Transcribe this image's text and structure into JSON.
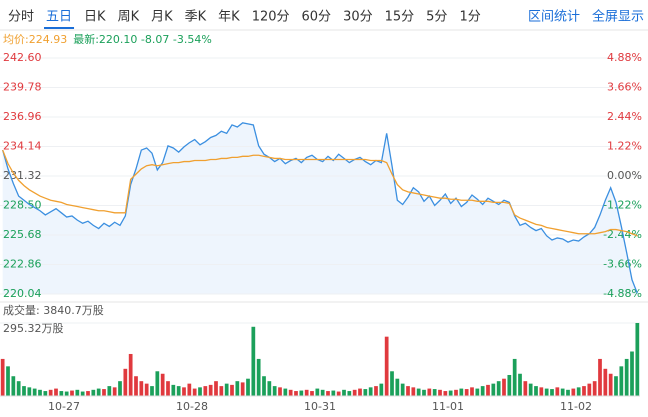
{
  "ui": {
    "tabs": [
      "分时",
      "五日",
      "日K",
      "周K",
      "月K",
      "季K",
      "年K",
      "120分",
      "60分",
      "30分",
      "15分",
      "5分",
      "1分"
    ],
    "active_tab": 1,
    "actions": [
      "区间统计",
      "全屏显示"
    ],
    "watermark": "雪球"
  },
  "chart_data": [
    {
      "type": "line",
      "avg_label": "均价:224.93",
      "latest_label": "最新:220.10 -8.07 -3.54%",
      "xlim": [
        -0.5,
        119.5
      ],
      "xticks": [
        {
          "value": 11.5,
          "label": "10-27"
        },
        {
          "value": 35.5,
          "label": "10-28"
        },
        {
          "value": 59.5,
          "label": "10-31"
        },
        {
          "value": 83.5,
          "label": "11-01"
        },
        {
          "value": 107.5,
          "label": "11-02"
        }
      ],
      "ylim": [
        220.04,
        242.6
      ],
      "yticks": [
        {
          "value": 242.6,
          "label": "242.60"
        },
        {
          "value": 239.78,
          "label": "239.78"
        },
        {
          "value": 236.96,
          "label": "236.96"
        },
        {
          "value": 234.14,
          "label": "234.14"
        },
        {
          "value": 231.32,
          "label": "231.32"
        },
        {
          "value": 228.5,
          "label": "228.50"
        },
        {
          "value": 225.68,
          "label": "225.68"
        },
        {
          "value": 222.86,
          "label": "222.86"
        },
        {
          "value": 220.04,
          "label": "220.04"
        }
      ],
      "y2lim": [
        -4.88,
        4.88
      ],
      "y2ticks": [
        {
          "value": 4.88,
          "label": "4.88%"
        },
        {
          "value": 3.66,
          "label": "3.66%"
        },
        {
          "value": 2.44,
          "label": "2.44%"
        },
        {
          "value": 1.22,
          "label": "1.22%"
        },
        {
          "value": 0,
          "label": "0.00%"
        },
        {
          "value": -1.22,
          "label": "-1.22%"
        },
        {
          "value": -2.44,
          "label": "-2.44%"
        },
        {
          "value": -3.66,
          "label": "-3.66%"
        },
        {
          "value": -4.88,
          "label": "-4.88%"
        }
      ],
      "grid": true,
      "series": [
        {
          "color": "#3b8fe0",
          "fill": "#eef5fd",
          "values": [
            233.8,
            232.0,
            230.6,
            229.4,
            229.0,
            228.6,
            228.3,
            228.0,
            227.6,
            227.9,
            228.2,
            227.8,
            227.4,
            227.5,
            227.1,
            226.8,
            227.0,
            226.6,
            226.3,
            226.8,
            226.5,
            226.9,
            226.6,
            227.5,
            230.5,
            232.0,
            233.8,
            234.0,
            233.5,
            231.9,
            232.6,
            234.2,
            234.0,
            233.6,
            234.1,
            234.5,
            234.8,
            234.3,
            234.6,
            235.0,
            235.2,
            235.6,
            235.4,
            236.2,
            236.0,
            236.4,
            236.3,
            236.2,
            234.2,
            233.4,
            233.1,
            232.7,
            233.0,
            232.5,
            232.8,
            233.0,
            232.6,
            233.1,
            233.3,
            232.9,
            232.7,
            233.2,
            232.8,
            233.4,
            233.0,
            232.6,
            232.9,
            233.1,
            232.7,
            232.4,
            232.8,
            232.6,
            235.4,
            232.3,
            229.0,
            228.6,
            229.3,
            230.2,
            229.8,
            228.9,
            229.4,
            228.5,
            229.0,
            229.6,
            228.7,
            229.2,
            228.4,
            228.8,
            229.5,
            229.1,
            228.6,
            229.2,
            228.9,
            228.6,
            229.0,
            228.8,
            227.5,
            226.6,
            226.8,
            226.4,
            226.1,
            226.3,
            225.6,
            225.2,
            225.4,
            225.3,
            225.0,
            225.2,
            225.1,
            225.5,
            225.8,
            226.4,
            227.6,
            229.0,
            230.2,
            228.8,
            226.5,
            224.0,
            221.4,
            220.1
          ]
        },
        {
          "color": "#f0a030",
          "values": [
            233.8,
            232.5,
            231.6,
            230.9,
            230.4,
            230.0,
            229.7,
            229.4,
            229.2,
            229.0,
            228.9,
            228.8,
            228.6,
            228.5,
            228.4,
            228.3,
            228.2,
            228.1,
            228.0,
            228.0,
            227.9,
            227.8,
            227.8,
            227.8,
            231.0,
            231.5,
            232.0,
            232.3,
            232.4,
            232.3,
            232.4,
            232.5,
            232.6,
            232.6,
            232.7,
            232.7,
            232.8,
            232.8,
            232.8,
            232.9,
            232.9,
            233.0,
            233.0,
            233.1,
            233.1,
            233.2,
            233.2,
            233.3,
            233.3,
            233.2,
            233.1,
            233.0,
            233.0,
            232.9,
            232.9,
            232.9,
            232.9,
            232.9,
            232.9,
            232.9,
            232.9,
            232.9,
            232.9,
            232.9,
            232.9,
            232.9,
            232.9,
            232.9,
            232.9,
            232.8,
            232.8,
            232.8,
            232.6,
            231.5,
            230.5,
            230.0,
            229.8,
            229.7,
            229.6,
            229.5,
            229.4,
            229.3,
            229.2,
            229.2,
            229.1,
            229.1,
            229.0,
            229.0,
            229.0,
            228.9,
            228.9,
            228.9,
            228.8,
            228.8,
            228.8,
            228.7,
            227.6,
            227.3,
            227.1,
            226.9,
            226.7,
            226.6,
            226.4,
            226.3,
            226.2,
            226.1,
            226.0,
            225.9,
            225.8,
            225.8,
            225.8,
            225.8,
            225.9,
            226.0,
            226.2,
            226.2,
            226.1,
            226.0,
            225.8,
            225.6
          ]
        }
      ]
    },
    {
      "type": "bar",
      "total_label": "成交量: 3840.7万股",
      "ylim": [
        0,
        295.32
      ],
      "yticks": [
        {
          "value": 295.32,
          "label": "295.32万股"
        }
      ],
      "up_color": "#e0393e",
      "down_color": "#1ba05a",
      "values": [
        150,
        120,
        80,
        60,
        40,
        35,
        30,
        25,
        20,
        25,
        30,
        20,
        18,
        22,
        25,
        18,
        20,
        25,
        30,
        28,
        40,
        35,
        60,
        110,
        170,
        80,
        60,
        50,
        40,
        100,
        90,
        60,
        45,
        40,
        35,
        50,
        30,
        35,
        40,
        45,
        60,
        40,
        50,
        45,
        60,
        55,
        70,
        280,
        150,
        80,
        60,
        40,
        35,
        30,
        25,
        20,
        22,
        25,
        20,
        30,
        25,
        20,
        22,
        18,
        25,
        20,
        25,
        30,
        28,
        35,
        40,
        50,
        240,
        100,
        70,
        50,
        40,
        35,
        30,
        25,
        30,
        28,
        25,
        20,
        22,
        25,
        30,
        28,
        35,
        30,
        40,
        45,
        50,
        60,
        70,
        85,
        150,
        90,
        60,
        50,
        40,
        35,
        30,
        28,
        35,
        30,
        25,
        30,
        35,
        40,
        50,
        60,
        150,
        110,
        90,
        80,
        120,
        150,
        180,
        295.32
      ]
    }
  ]
}
